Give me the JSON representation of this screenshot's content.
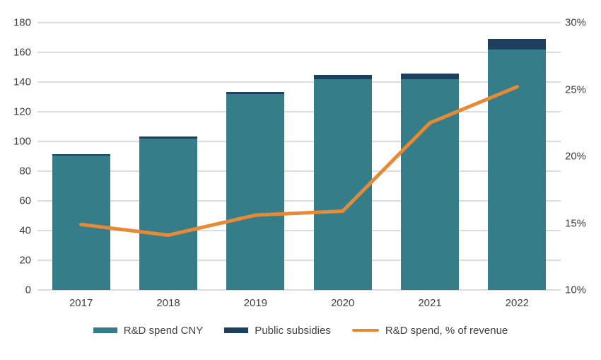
{
  "colors": {
    "bar_teal": "#367d8a",
    "bar_navy": "#1f3f5e",
    "line_orange": "#e78a35",
    "gridline": "#dcdcdc",
    "axis_text": "#404040",
    "background": "#ffffff"
  },
  "chart_data": {
    "type": "bar",
    "subtype": "stacked-bars-with-line",
    "categories": [
      "2017",
      "2018",
      "2019",
      "2020",
      "2021",
      "2022"
    ],
    "series": [
      {
        "name": "R&D spend CNY",
        "kind": "bar",
        "axis": "left",
        "color": "#367d8a",
        "values": [
          90.5,
          102,
          132,
          142,
          142,
          162
        ]
      },
      {
        "name": "Public subsidies",
        "kind": "bar-stacked-on-previous",
        "axis": "left",
        "color": "#1f3f5e",
        "values": [
          1,
          1.5,
          1.5,
          3,
          3.5,
          7
        ]
      },
      {
        "name": "R&D spend, % of revenue",
        "kind": "line",
        "axis": "right",
        "color": "#e78a35",
        "values": [
          14.9,
          14.1,
          15.6,
          15.9,
          22.5,
          25.2
        ]
      }
    ],
    "left_axis": {
      "min": 0,
      "max": 180,
      "tick_step": 20,
      "tick_labels": [
        "0",
        "20",
        "40",
        "60",
        "80",
        "100",
        "120",
        "140",
        "160",
        "180"
      ]
    },
    "right_axis": {
      "min": 10,
      "max": 30,
      "tick_step": 5,
      "tick_labels": [
        "10%",
        "15%",
        "20%",
        "25%",
        "30%"
      ]
    },
    "grid": "horizontal",
    "legend_position": "bottom"
  }
}
